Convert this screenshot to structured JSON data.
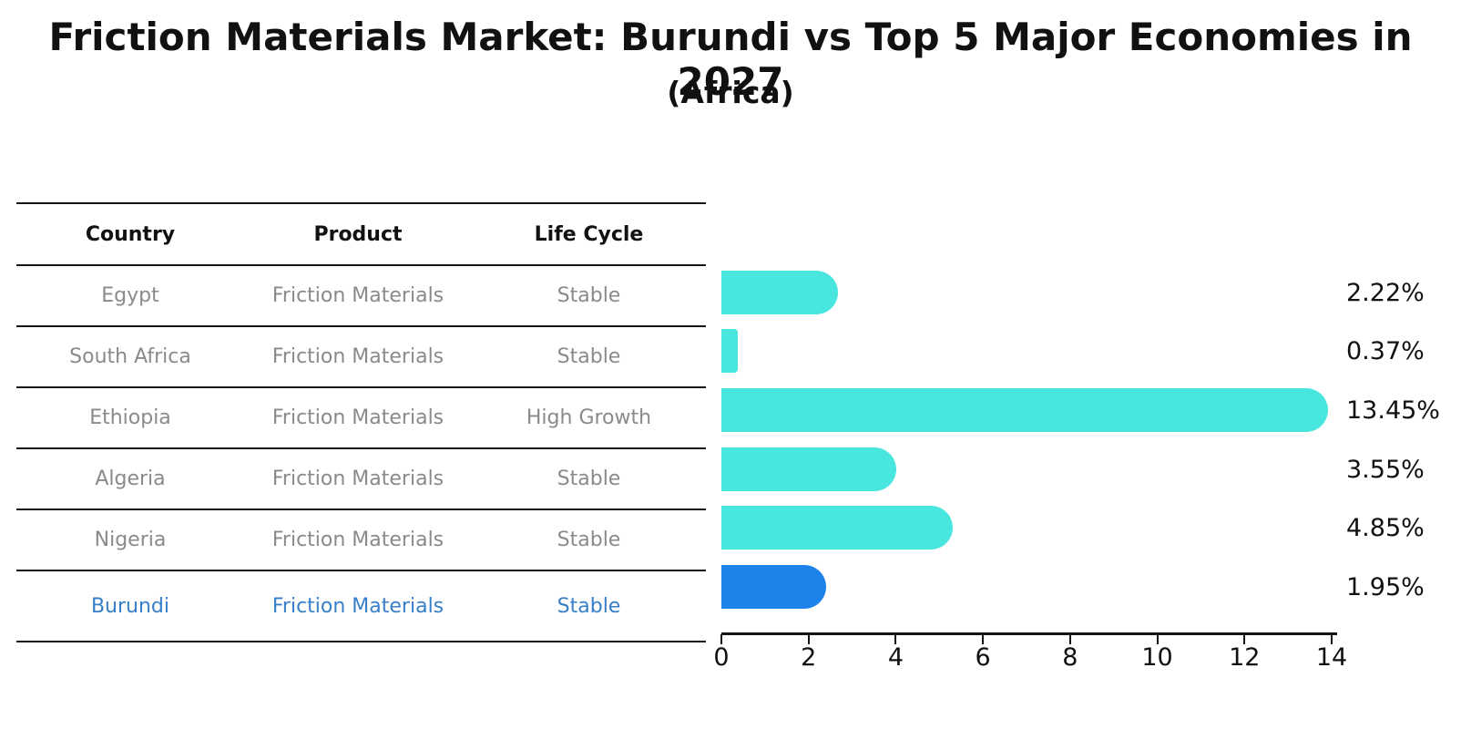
{
  "title": "Friction Materials Market: Burundi vs Top 5 Major Economies in 2027",
  "subtitle": "(Africa)",
  "table": {
    "headers": [
      "Country",
      "Product",
      "Life Cycle"
    ],
    "rows": [
      {
        "country": "Egypt",
        "product": "Friction Materials",
        "life_cycle": "Stable",
        "highlight": false
      },
      {
        "country": "South Africa",
        "product": "Friction Materials",
        "life_cycle": "Stable",
        "highlight": false
      },
      {
        "country": "Ethiopia",
        "product": "Friction Materials",
        "life_cycle": "High Growth",
        "highlight": false
      },
      {
        "country": "Algeria",
        "product": "Friction Materials",
        "life_cycle": "Stable",
        "highlight": false
      },
      {
        "country": "Nigeria",
        "product": "Friction Materials",
        "life_cycle": "Stable",
        "highlight": false
      },
      {
        "country": "Burundi",
        "product": "Friction Materials",
        "life_cycle": "Stable",
        "highlight": true
      }
    ]
  },
  "chart_data": {
    "type": "bar",
    "orientation": "horizontal",
    "title": "Friction Materials Market: Burundi vs Top 5 Major Economies in 2027",
    "subtitle": "(Africa)",
    "categories": [
      "Egypt",
      "South Africa",
      "Ethiopia",
      "Algeria",
      "Nigeria",
      "Burundi"
    ],
    "values": [
      2.22,
      0.37,
      13.45,
      3.55,
      4.85,
      1.95
    ],
    "value_labels": [
      "2.22%",
      "0.37%",
      "13.45%",
      "3.55%",
      "4.85%",
      "1.95%"
    ],
    "xlabel": "",
    "ylabel": "",
    "xlim": [
      0,
      14
    ],
    "x_ticks": [
      0,
      2,
      4,
      6,
      8,
      10,
      12,
      14
    ],
    "grid": false,
    "legend": false,
    "highlight_category": "Burundi",
    "colors": {
      "bar": "#49e6df",
      "highlight_bar": "#1e82eb",
      "highlight_text": "#377fc9",
      "table_text": "#8a8a8a",
      "axis": "#161616"
    }
  }
}
